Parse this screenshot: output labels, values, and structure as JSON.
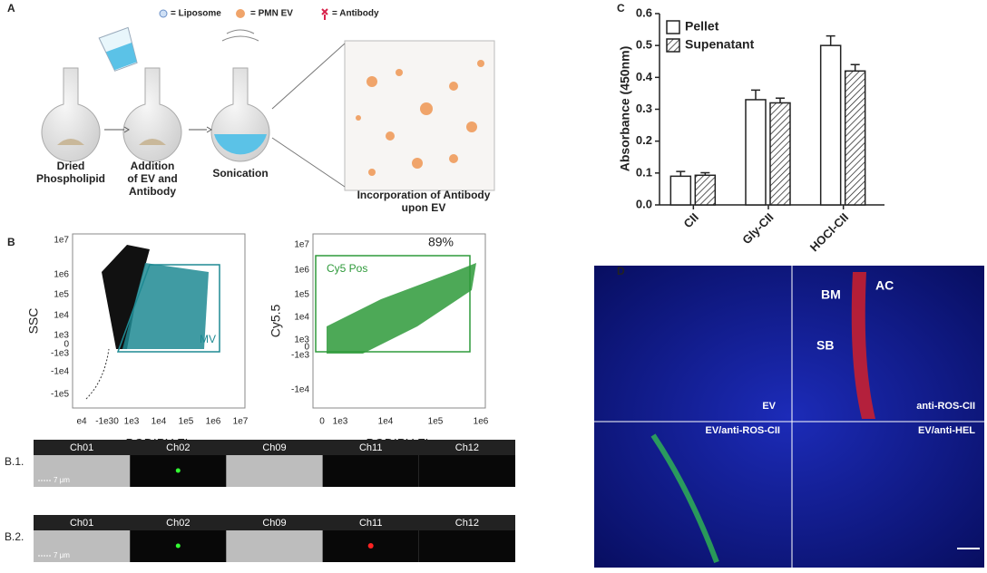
{
  "panel_a": {
    "label": "A",
    "legend": [
      "= Liposome",
      "= PMN EV",
      "= Antibody"
    ],
    "steps": [
      [
        "Dried",
        "Phospholipid"
      ],
      [
        "Addition",
        "of EV and",
        "Antibody"
      ],
      [
        "Sonication"
      ],
      [
        "Incorporation of Antibody",
        "upon EV"
      ]
    ]
  },
  "panel_b": {
    "label": "B",
    "plot1": {
      "gate": "MV",
      "ylabel": "SSC",
      "xlabel": "BODIPY FL",
      "yticks": [
        "1e7",
        "1e6",
        "1e5",
        "1e4",
        "1e3",
        "0",
        "-1e3",
        "-1e4",
        "-1e5"
      ],
      "xticks": [
        "e4",
        "-1e30",
        "1e3",
        "1e4",
        "1e5",
        "1e6",
        "1e7"
      ]
    },
    "plot2": {
      "gate": "Cy5 Pos",
      "percent": "89%",
      "ylabel": "Cy5.5",
      "xlabel": "BODIPY FL",
      "yticks": [
        "1e7",
        "1e6",
        "1e5",
        "1e4",
        "1e3",
        "0",
        "-1e3",
        "-1e4"
      ],
      "xticks": [
        "0",
        "1e3",
        "1e4",
        "1e5",
        "1e6"
      ]
    },
    "rows": [
      {
        "label": "B.1.",
        "channels": [
          "Ch01",
          "Ch02",
          "Ch09",
          "Ch11",
          "Ch12"
        ],
        "scale": "7 μm"
      },
      {
        "label": "B.2.",
        "channels": [
          "Ch01",
          "Ch02",
          "Ch09",
          "Ch11",
          "Ch12"
        ],
        "scale": "7 μm"
      }
    ]
  },
  "chart_data": {
    "type": "bar",
    "panel_label": "C",
    "ylabel": "Absorbance (450nm)",
    "categories": [
      "CII",
      "Gly-CII",
      "HOCl-CII"
    ],
    "series": [
      {
        "name": "Pellet",
        "color": "#ffffff",
        "values": [
          0.09,
          0.33,
          0.5
        ],
        "errors": [
          0.015,
          0.03,
          0.03
        ]
      },
      {
        "name": "Supenatant",
        "color": "#ffffff",
        "hatch": true,
        "values": [
          0.093,
          0.32,
          0.42
        ],
        "errors": [
          0.008,
          0.015,
          0.02
        ]
      }
    ],
    "ylim": [
      0,
      0.6
    ],
    "yticks": [
      {
        "value": 0,
        "label": "0.0"
      },
      0.1,
      0.2,
      0.3,
      0.4,
      0.5,
      0.6
    ],
    "legend": "upper left"
  },
  "panel_d": {
    "label": "D",
    "markers": [
      "BM",
      "AC",
      "SB"
    ],
    "quadrants": [
      "EV",
      "anti-ROS-CII",
      "EV/anti-ROS-CII",
      "EV/anti-HEL"
    ]
  }
}
